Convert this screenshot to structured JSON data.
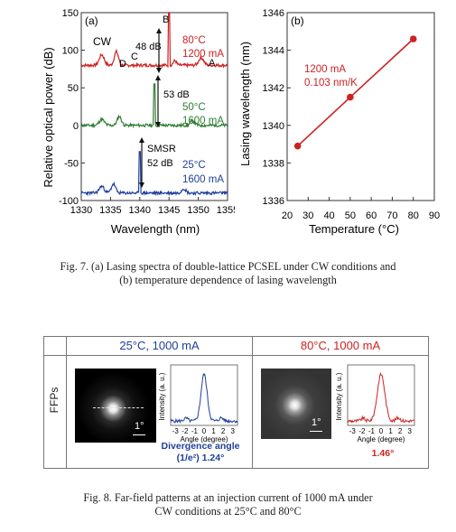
{
  "fig7": {
    "panel_a": {
      "label": "(a)",
      "ylabel": "Relative optical power (dB)",
      "xlabel": "Wavelength (nm)",
      "xticks": [
        "1330",
        "1335",
        "1340",
        "1345",
        "1350",
        "1355"
      ],
      "yticks": [
        "150",
        "100",
        "50",
        "0",
        "-50",
        "-100"
      ],
      "cw_label": "CW",
      "peak_labels": {
        "a": "A",
        "b": "B",
        "c": "C",
        "d": "D"
      },
      "traces": [
        {
          "temp": "80°C",
          "current": "1200 mA",
          "ratio": "48 dB",
          "color": "#cc2222"
        },
        {
          "temp": "50°C",
          "current": "1600 mA",
          "ratio": "53 dB",
          "color": "#2e7d32"
        },
        {
          "temp": "25°C",
          "current": "1600 mA",
          "ratio": "52 dB",
          "color": "#1f3f9a",
          "smsr": "SMSR"
        }
      ]
    },
    "panel_b": {
      "label": "(b)",
      "ylabel": "Lasing wavelength (nm)",
      "xlabel": "Temperature (°C)",
      "xticks": [
        "20",
        "30",
        "40",
        "50",
        "60",
        "70",
        "80",
        "90"
      ],
      "yticks": [
        "1346",
        "1344",
        "1342",
        "1340",
        "1338",
        "1336"
      ],
      "note_current": "1200 mA",
      "note_slope": "0.103 nm/K",
      "color": "#cc2222"
    },
    "caption_line1": "Fig. 7.  (a) Lasing spectra of double-lattice PCSEL under CW conditions and",
    "caption_line2": "(b) temperature dependence of lasing wavelength"
  },
  "chart_data": [
    {
      "type": "line",
      "title": "",
      "xlabel": "Wavelength (nm)",
      "ylabel": "Relative optical power (dB)",
      "xlim": [
        1330,
        1355
      ],
      "ylim": [
        -100,
        150
      ],
      "series": [
        {
          "name": "80°C, 1200 mA",
          "peak_x": 1345.0,
          "peak_y": 150,
          "floor_y": 80
        },
        {
          "name": "50°C, 1600 mA",
          "peak_x": 1342.5,
          "peak_y": 55,
          "floor_y": 0
        },
        {
          "name": "25°C, 1600 mA",
          "peak_x": 1340.0,
          "peak_y": -35,
          "floor_y": -90
        }
      ]
    },
    {
      "type": "line",
      "title": "",
      "xlabel": "Temperature (°C)",
      "ylabel": "Lasing wavelength (nm)",
      "xlim": [
        20,
        90
      ],
      "ylim": [
        1336,
        1346
      ],
      "x": [
        25,
        50,
        80
      ],
      "series": [
        {
          "values": [
            1338.9,
            1341.5,
            1344.6
          ]
        }
      ]
    }
  ],
  "fig8": {
    "header_left": "25°C, 1000 mA",
    "header_right": "80°C, 1000 mA",
    "row_label": "FFPs",
    "scale_bar": "1°",
    "plot_ylabel": "Intensity (a. u.)",
    "plot_xlabel": "Angle (degree)",
    "plot_xticks": [
      "-3",
      "-2",
      "-1",
      "0",
      "1",
      "2",
      "3"
    ],
    "divergence_line1": "Divergence angle",
    "divergence_line2": "(1/e²) 1.24°",
    "divergence_right": "1.46°",
    "color_left": "#1f3f9a",
    "color_right": "#cc2222",
    "caption_line1": "Fig. 8.  Far-field patterns at an injection current of 1000 mA under",
    "caption_line2": "CW conditions at 25°C and 80°C"
  }
}
